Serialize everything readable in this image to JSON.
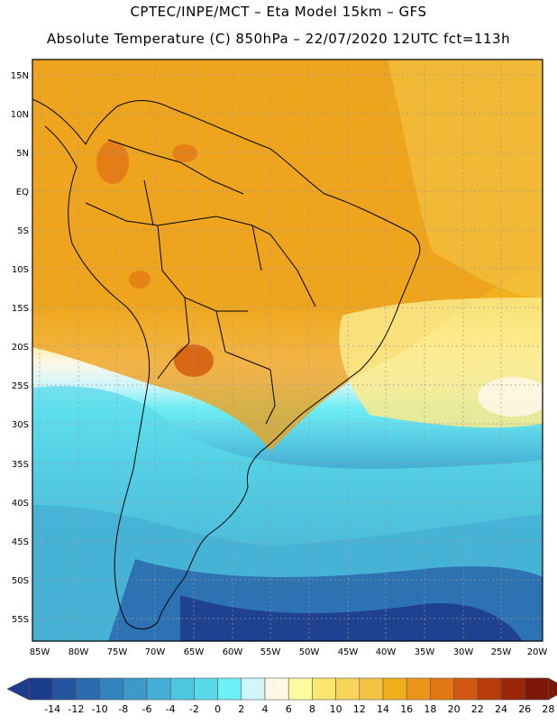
{
  "header": {
    "line1": "CPTEC/INPE/MCT –  Eta Model 15km – GFS",
    "line2": "Absolute Temperature (C) 850hPa – 22/07/2020 12UTC fct=113h"
  },
  "axes": {
    "lat_labels": [
      "15N",
      "10N",
      "5N",
      "EQ",
      "5S",
      "10S",
      "15S",
      "20S",
      "25S",
      "30S",
      "35S",
      "40S",
      "45S",
      "50S",
      "55S"
    ],
    "lon_labels": [
      "85W",
      "80W",
      "75W",
      "70W",
      "65W",
      "60W",
      "55W",
      "50W",
      "45W",
      "40W",
      "35W",
      "30W",
      "25W",
      "20W"
    ]
  },
  "colorbar": {
    "labels": [
      "-14",
      "-12",
      "-10",
      "-8",
      "-6",
      "-4",
      "-2",
      "0",
      "2",
      "4",
      "6",
      "8",
      "10",
      "12",
      "14",
      "16",
      "18",
      "20",
      "22",
      "24",
      "26",
      "28"
    ],
    "colors": [
      "#1e3c8c",
      "#24559e",
      "#2a6cae",
      "#3383bd",
      "#3c99c9",
      "#45b0d5",
      "#4fc6e0",
      "#5ad9ea",
      "#6eeef5",
      "#d0f6fa",
      "#fff7e6",
      "#fffaa0",
      "#fbe670",
      "#f8d45a",
      "#f3c242",
      "#f1ae1c",
      "#ea9418",
      "#e27714",
      "#d05810",
      "#b83c0c",
      "#9a2608",
      "#7c1808"
    ]
  },
  "field_colors": {
    "ocean_north": "#f2b11c",
    "land_warm": "#eea11e",
    "hot": "#d76414",
    "pale_yellow": "#fbea8a",
    "cream": "#fff7e6",
    "light_cyan": "#d0f6fa",
    "cyan": "#6eeef5",
    "mid_blue": "#45b0d5",
    "deep_blue": "#24559e",
    "deepest": "#1e3c8c"
  }
}
